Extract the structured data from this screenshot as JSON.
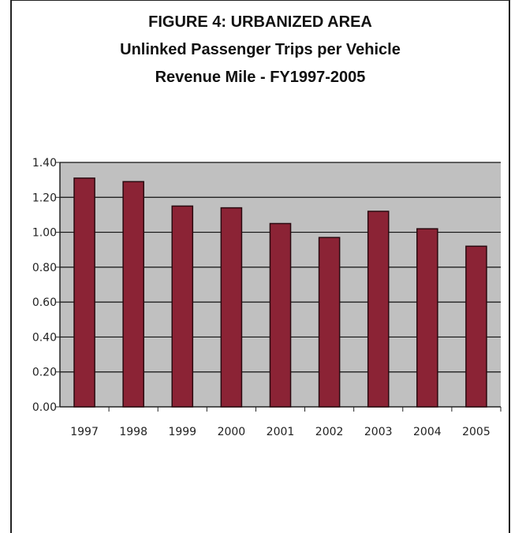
{
  "chart_data": {
    "type": "bar",
    "title": "FIGURE 4: URBANIZED AREA",
    "subtitle_lines": [
      "Unlinked Passenger Trips per Vehicle",
      "Revenue Mile - FY1997-2005"
    ],
    "categories": [
      "1997",
      "1998",
      "1999",
      "2000",
      "2001",
      "2002",
      "2003",
      "2004",
      "2005"
    ],
    "values": [
      1.31,
      1.29,
      1.15,
      1.14,
      1.05,
      0.97,
      1.12,
      1.02,
      0.92
    ],
    "ylim": [
      0,
      1.4
    ],
    "yticks": [
      "0.00",
      "0.20",
      "0.40",
      "0.60",
      "0.80",
      "1.00",
      "1.20",
      "1.40"
    ],
    "xlabel": "",
    "ylabel": "",
    "grid": true,
    "legend": "none",
    "colors": {
      "bar": "#8b2335",
      "bar_edge": "#2a0a10",
      "plot_background": "#c0c0c0",
      "gridline": "#111111"
    }
  }
}
